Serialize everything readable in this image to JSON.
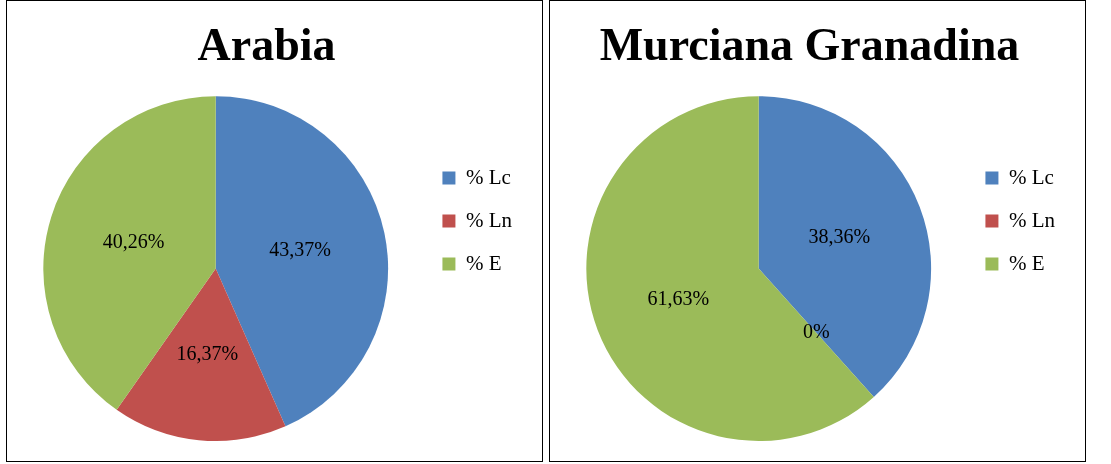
{
  "chart_data": [
    {
      "type": "pie",
      "title": "Arabia",
      "categories": [
        "% Lc",
        "% Ln",
        "% E"
      ],
      "values": [
        43.37,
        16.37,
        40.26
      ],
      "colors": [
        "#4f81bd",
        "#c0504d",
        "#9bbb59"
      ],
      "value_labels": [
        "43,37%",
        "16,37%",
        "40,26%"
      ],
      "legend": "right"
    },
    {
      "type": "pie",
      "title": "Murciana Granadina",
      "categories": [
        "% Lc",
        "% Ln",
        "% E"
      ],
      "values": [
        38.36,
        0,
        61.63
      ],
      "colors": [
        "#4f81bd",
        "#c0504d",
        "#9bbb59"
      ],
      "value_labels": [
        "38,36%",
        "0%",
        "61,63%"
      ],
      "legend": "right"
    }
  ]
}
